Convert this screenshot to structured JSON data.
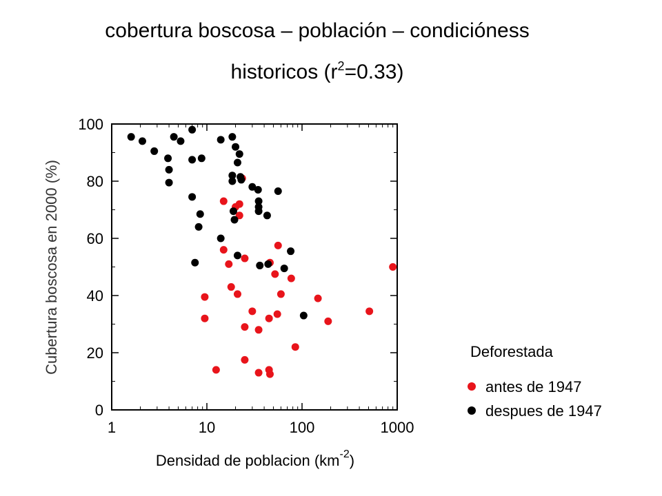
{
  "chart_data": {
    "type": "scatter",
    "title": {
      "line1": "cobertura boscosa – población – condicióness",
      "line2_prefix": "historicos (r",
      "line2_sup": "2",
      "line2_suffix": "=0.33)"
    },
    "xlabel": {
      "prefix": "Densidad de poblacion (km",
      "sup": "-2",
      "suffix": ")"
    },
    "ylabel": "Cubertura boscosa en 2000 (%)",
    "x_scale": "log",
    "xlim": [
      1,
      1000
    ],
    "ylim": [
      0,
      100
    ],
    "x_ticks": [
      {
        "value": 1,
        "label": "1"
      },
      {
        "value": 10,
        "label": "10"
      },
      {
        "value": 100,
        "label": "100"
      },
      {
        "value": 1000,
        "label": "1000"
      }
    ],
    "y_ticks": [
      {
        "value": 0,
        "label": "0"
      },
      {
        "value": 20,
        "label": "20"
      },
      {
        "value": 40,
        "label": "40"
      },
      {
        "value": 60,
        "label": "60"
      },
      {
        "value": 80,
        "label": "80"
      },
      {
        "value": 100,
        "label": "100"
      }
    ],
    "grid": false,
    "legend": {
      "title": "Deforestada",
      "position": "right"
    },
    "series": [
      {
        "name": "antes de 1947",
        "color": "#e8141b",
        "points": [
          [
            23.5,
            81
          ],
          [
            15,
            73
          ],
          [
            22,
            72
          ],
          [
            20,
            71
          ],
          [
            22,
            68
          ],
          [
            15,
            56
          ],
          [
            56,
            57.5
          ],
          [
            25,
            53
          ],
          [
            17,
            51
          ],
          [
            46,
            51.5
          ],
          [
            52,
            47.5
          ],
          [
            77,
            46
          ],
          [
            900,
            50
          ],
          [
            18,
            43
          ],
          [
            21,
            40.5
          ],
          [
            60,
            40.5
          ],
          [
            9.5,
            39.5
          ],
          [
            147,
            39
          ],
          [
            30,
            34.5
          ],
          [
            55,
            33.5
          ],
          [
            510,
            34.5
          ],
          [
            9.5,
            32
          ],
          [
            45,
            32
          ],
          [
            188,
            31
          ],
          [
            25,
            29
          ],
          [
            35,
            28
          ],
          [
            85,
            22
          ],
          [
            25,
            17.5
          ],
          [
            12.5,
            14
          ],
          [
            35,
            13
          ],
          [
            45,
            14
          ],
          [
            46,
            12.5
          ]
        ]
      },
      {
        "name": "despues de 1947",
        "color": "#000000",
        "points": [
          [
            7,
            98
          ],
          [
            1.6,
            95.5
          ],
          [
            4.5,
            95.5
          ],
          [
            18.5,
            95.5
          ],
          [
            2.1,
            94
          ],
          [
            5.3,
            94
          ],
          [
            14,
            94.5
          ],
          [
            20,
            92
          ],
          [
            2.8,
            90.5
          ],
          [
            22,
            89.5
          ],
          [
            3.9,
            88
          ],
          [
            7,
            87.5
          ],
          [
            8.8,
            88
          ],
          [
            21,
            86.5
          ],
          [
            4,
            84
          ],
          [
            18.5,
            82
          ],
          [
            22.5,
            81.5
          ],
          [
            18.5,
            80
          ],
          [
            23,
            80.5
          ],
          [
            4,
            79.5
          ],
          [
            30,
            78
          ],
          [
            34.5,
            77
          ],
          [
            56,
            76.5
          ],
          [
            7,
            74.5
          ],
          [
            35,
            73
          ],
          [
            35,
            71
          ],
          [
            35,
            69.5
          ],
          [
            19,
            69.5
          ],
          [
            8.5,
            68.5
          ],
          [
            43,
            68
          ],
          [
            19.5,
            66.5
          ],
          [
            8.2,
            64
          ],
          [
            14,
            60
          ],
          [
            76,
            55.5
          ],
          [
            21,
            54
          ],
          [
            7.5,
            51.5
          ],
          [
            44,
            51
          ],
          [
            36,
            50.5
          ],
          [
            65,
            49.5
          ],
          [
            104,
            33
          ]
        ]
      }
    ]
  }
}
